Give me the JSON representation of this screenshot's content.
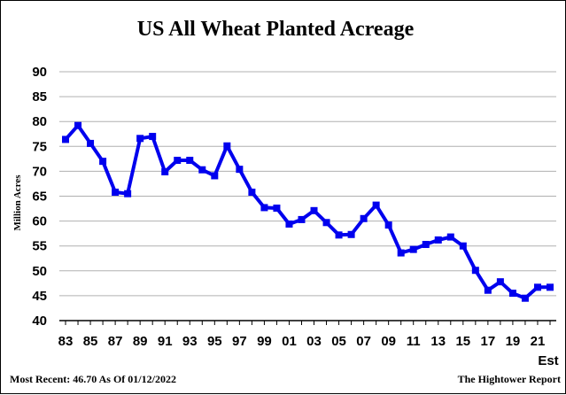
{
  "chart_data": {
    "type": "line",
    "title": "US All Wheat Planted Acreage",
    "ylabel": "Million Acres",
    "xlabel": "",
    "ylim": [
      40,
      90
    ],
    "yticks": [
      40,
      45,
      50,
      55,
      60,
      65,
      70,
      75,
      80,
      85,
      90
    ],
    "grid": true,
    "x_tick_labels": [
      "83",
      "85",
      "87",
      "89",
      "91",
      "93",
      "95",
      "97",
      "99",
      "01",
      "03",
      "05",
      "07",
      "09",
      "11",
      "13",
      "15",
      "17",
      "19",
      "21"
    ],
    "x_tick_years": [
      1983,
      1985,
      1987,
      1989,
      1991,
      1993,
      1995,
      1997,
      1999,
      2001,
      2003,
      2005,
      2007,
      2009,
      2011,
      2013,
      2015,
      2017,
      2019,
      2021
    ],
    "x_end_label": "Est",
    "series": [
      {
        "name": "",
        "color": "#0000ee",
        "x": [
          1983,
          1984,
          1985,
          1986,
          1987,
          1988,
          1989,
          1990,
          1991,
          1992,
          1993,
          1994,
          1995,
          1996,
          1997,
          1998,
          1999,
          2000,
          2001,
          2002,
          2003,
          2004,
          2005,
          2006,
          2007,
          2008,
          2009,
          2010,
          2011,
          2012,
          2013,
          2014,
          2015,
          2016,
          2017,
          2018,
          2019,
          2020,
          2021,
          2022
        ],
        "values": [
          76.4,
          79.2,
          75.6,
          72.0,
          65.8,
          65.5,
          76.6,
          77.0,
          69.9,
          72.2,
          72.2,
          70.3,
          69.1,
          75.1,
          70.4,
          65.8,
          62.7,
          62.6,
          59.4,
          60.3,
          62.1,
          59.7,
          57.2,
          57.3,
          60.5,
          63.2,
          59.2,
          53.6,
          54.3,
          55.3,
          56.2,
          56.8,
          55.0,
          50.1,
          46.1,
          47.8,
          45.5,
          44.5,
          46.7,
          46.7
        ]
      }
    ]
  },
  "footer": {
    "left": "Most Recent: 46.70 As Of 01/12/2022",
    "right": "The Hightower Report"
  }
}
